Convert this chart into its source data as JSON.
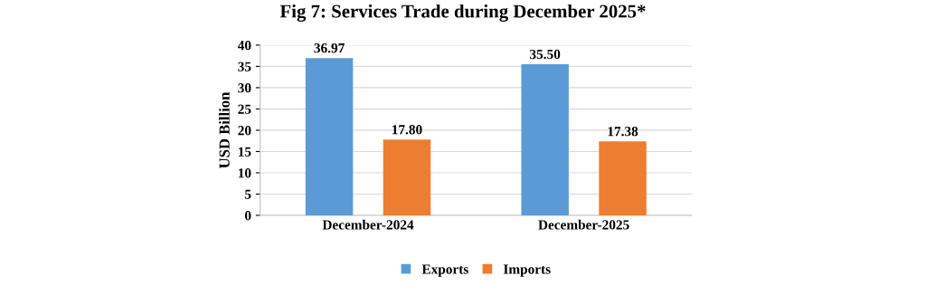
{
  "chart_data": {
    "type": "bar",
    "title": "Fig 7: Services Trade during December 2025*",
    "ylabel": "USD Billion",
    "categories": [
      "December-2024",
      "December-2025"
    ],
    "series": [
      {
        "name": "Exports",
        "color": "#5b9bd5",
        "values": [
          36.97,
          35.5
        ],
        "value_labels": [
          "36.97",
          "35.50"
        ]
      },
      {
        "name": "Imports",
        "color": "#ed7d31",
        "values": [
          17.8,
          17.38
        ],
        "value_labels": [
          "17.80",
          "17.38"
        ]
      }
    ],
    "ylim": [
      0,
      40
    ],
    "yticks": [
      0,
      5,
      10,
      15,
      20,
      25,
      30,
      35,
      40
    ],
    "grid": "y",
    "legend": "bottom"
  }
}
